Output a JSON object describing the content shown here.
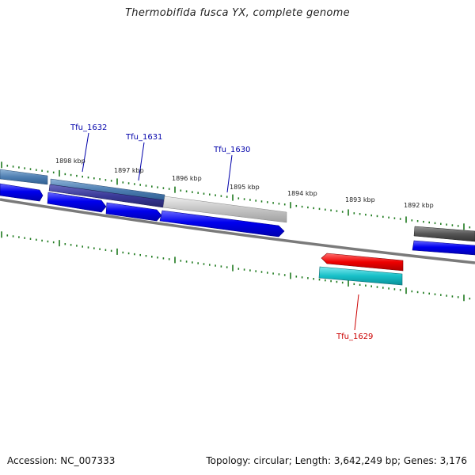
{
  "title": "Thermobifida fusca YX, complete genome",
  "footer": {
    "accession": "Accession: NC_007333",
    "topology": "Topology: circular; Length: 3,642,249 bp; Genes: 3,176"
  },
  "colors": {
    "label_default": "#0000aa",
    "label_highlight": "#cc0000",
    "tick": "#1e7a1e",
    "backbone": "#7a7a7a"
  },
  "ticks": [
    {
      "label": "1898 kbp"
    },
    {
      "label": "1897 kbp"
    },
    {
      "label": "1896 kbp"
    },
    {
      "label": "1895 kbp"
    },
    {
      "label": "1894 kbp"
    },
    {
      "label": "1893 kbp"
    },
    {
      "label": "1892 kbp"
    }
  ],
  "gene_labels": [
    {
      "name": "Tfu_1632",
      "highlight": false
    },
    {
      "name": "Tfu_1631",
      "highlight": false
    },
    {
      "name": "Tfu_1630",
      "highlight": false
    },
    {
      "name": "Tfu_1629",
      "highlight": true
    }
  ]
}
